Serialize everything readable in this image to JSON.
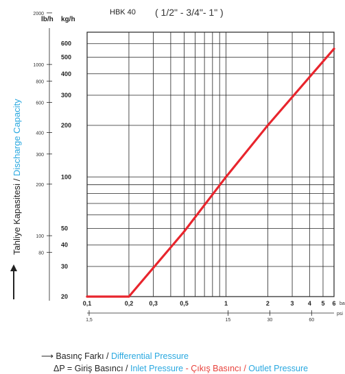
{
  "chart_data": {
    "type": "line",
    "title": "HBK 40",
    "subtitle": "( 1/2\" -  3/4\"- 1\" )",
    "x_scale": "log",
    "y_scale": "log",
    "xlim": [
      0.1,
      6
    ],
    "ylim_kg_h": [
      20,
      700
    ],
    "x_ticks_bar": [
      0.1,
      0.2,
      0.3,
      0.5,
      1,
      2,
      3,
      4,
      5,
      6
    ],
    "x_tick_labels_bar": [
      "0,1",
      "0,2",
      "0,3",
      "0,5",
      "1",
      "2",
      "3",
      "4",
      "5",
      "6"
    ],
    "x_unit_bar": "bar",
    "x_ticks_psi": [
      1.5,
      15,
      30,
      60
    ],
    "x_tick_labels_psi": [
      "1,5",
      "15",
      "30",
      "60"
    ],
    "x_unit_psi": "psi",
    "y_ticks_kg_h": [
      20,
      30,
      40,
      50,
      100,
      200,
      300,
      400,
      500,
      600
    ],
    "y_unit_kg_h": "kg/h",
    "y_ticks_lb_h": [
      80,
      100,
      200,
      300,
      400,
      600,
      800,
      1000,
      2000
    ],
    "y_unit_lb_h": "lb/h",
    "ylabel_tr": "Tahliye Kapasitesi / ",
    "ylabel_en": "Discharge Capacity",
    "grid": true,
    "series": [
      {
        "x": [
          0.1,
          0.2,
          0.5,
          1,
          2,
          6
        ],
        "y": [
          20,
          20,
          48,
          100,
          200,
          560
        ]
      }
    ],
    "series_color": "#e8252d"
  },
  "footer": {
    "line1_tr": "Basınç Farkı / ",
    "line1_en": "Differential Pressure",
    "line2_a": "ΔP = Giriş Basıncı / ",
    "line2_b": "Inlet Pressure",
    "line2_c": " - Çıkış Basıncı / ",
    "line2_d": "Outlet Pressure"
  }
}
